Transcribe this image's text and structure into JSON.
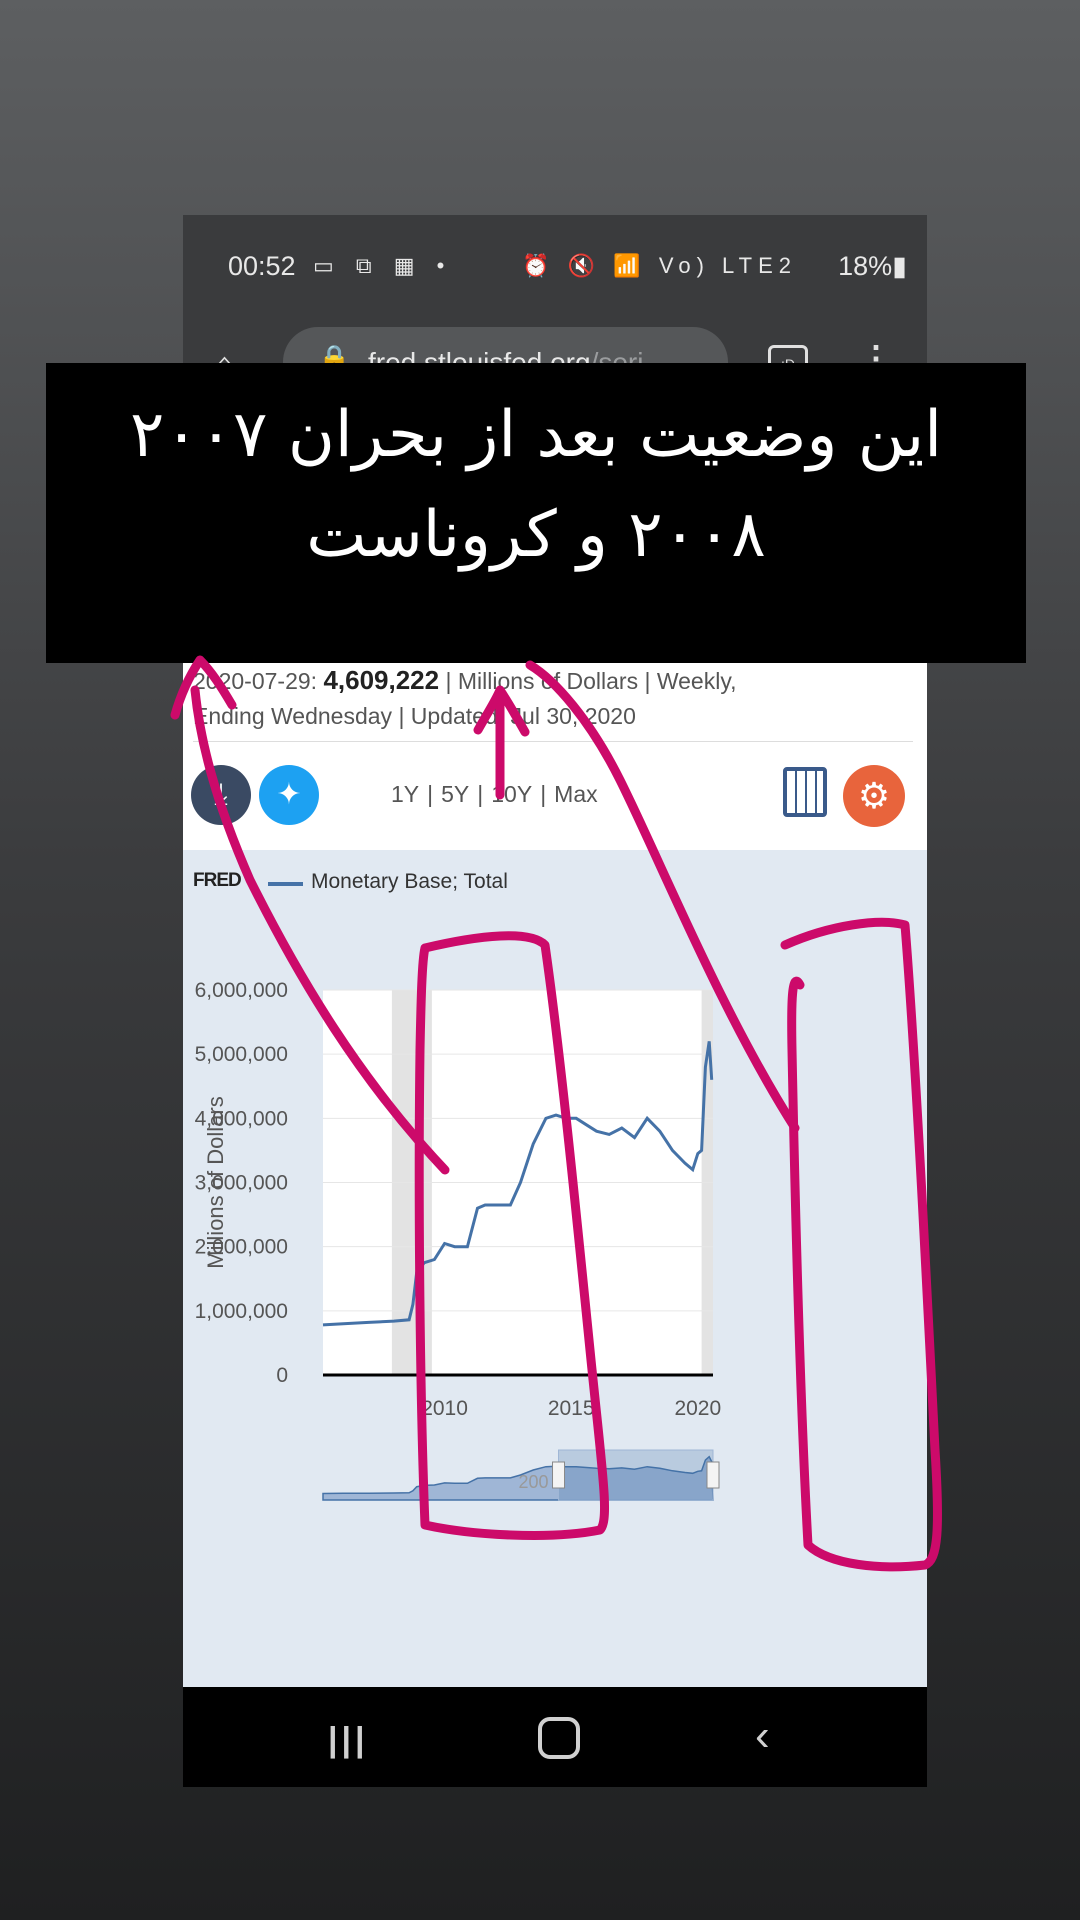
{
  "status_bar": {
    "time": "00:52",
    "left_icons": "▭ ⧉ ▦ •",
    "right_icons": "⏰ 🔇 📶 Vo) LTE2",
    "battery": "18%"
  },
  "browser": {
    "url_host": "fred.stlouisfed.org",
    "url_path": "/seri",
    "tab_icon": ":D"
  },
  "series_info": {
    "line1_prefix": "2020-07-29: ",
    "value": "4,609,222",
    "line1_suffix": " | Millions of Dollars | Weekly,",
    "line2": "Ending Wednesday | Updated: Jul 30, 2020"
  },
  "ranges": [
    "1Y",
    "5Y",
    "10Y",
    "Max"
  ],
  "chart_header": {
    "logo": "FRED",
    "legend": "Monetary Base; Total"
  },
  "annotation": {
    "text": "این وضعیت بعد از بحران ۲۰۰۷ ۲۰۰۸ و کروناست"
  },
  "colors": {
    "series": "#4572a7",
    "scribble": "#cc0a6a",
    "recession": "#e3e3e3",
    "chart_bg": "#e1e9f2"
  },
  "chart_data": {
    "type": "line",
    "title": "",
    "xlabel": "",
    "ylabel": "Millions of Dollars",
    "xlim": [
      2005.2,
      2020.6
    ],
    "ylim": [
      0,
      6000000
    ],
    "y_ticks": [
      "0",
      "1,000,000",
      "2,000,000",
      "3,000,000",
      "4,000,000",
      "5,000,000",
      "6,000,000"
    ],
    "x_ticks": [
      "2010",
      "2015",
      "2020"
    ],
    "recessions": [
      [
        2007.92,
        2009.5
      ],
      [
        2020.15,
        2020.6
      ]
    ],
    "series": [
      {
        "name": "Monetary Base; Total",
        "x": [
          2005.2,
          2006.0,
          2007.0,
          2008.0,
          2008.6,
          2008.75,
          2008.9,
          2009.2,
          2009.6,
          2010.0,
          2010.4,
          2010.9,
          2011.3,
          2011.6,
          2012.0,
          2012.6,
          2013.0,
          2013.5,
          2014.0,
          2014.4,
          2014.8,
          2015.2,
          2015.6,
          2016.0,
          2016.5,
          2017.0,
          2017.5,
          2018.0,
          2018.5,
          2019.0,
          2019.5,
          2019.8,
          2020.0,
          2020.15,
          2020.3,
          2020.45,
          2020.55
        ],
        "values": [
          780000,
          800000,
          820000,
          840000,
          860000,
          1100000,
          1600000,
          1750000,
          1800000,
          2050000,
          2000000,
          2000000,
          2600000,
          2650000,
          2650000,
          2650000,
          3000000,
          3600000,
          4000000,
          4050000,
          4000000,
          4000000,
          3900000,
          3800000,
          3750000,
          3850000,
          3700000,
          4000000,
          3800000,
          3500000,
          3300000,
          3200000,
          3450000,
          3500000,
          4800000,
          5200000,
          4600000
        ]
      }
    ],
    "navigator_label": "200"
  }
}
